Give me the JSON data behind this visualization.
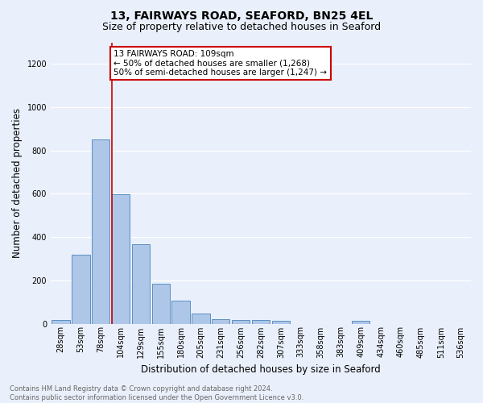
{
  "title1": "13, FAIRWAYS ROAD, SEAFORD, BN25 4EL",
  "title2": "Size of property relative to detached houses in Seaford",
  "xlabel": "Distribution of detached houses by size in Seaford",
  "ylabel": "Number of detached properties",
  "footnote": "Contains HM Land Registry data © Crown copyright and database right 2024.\nContains public sector information licensed under the Open Government Licence v3.0.",
  "bar_labels": [
    "28sqm",
    "53sqm",
    "78sqm",
    "104sqm",
    "129sqm",
    "155sqm",
    "180sqm",
    "205sqm",
    "231sqm",
    "256sqm",
    "282sqm",
    "307sqm",
    "333sqm",
    "358sqm",
    "383sqm",
    "409sqm",
    "434sqm",
    "460sqm",
    "485sqm",
    "511sqm",
    "536sqm"
  ],
  "bar_values": [
    15,
    318,
    853,
    597,
    368,
    183,
    105,
    48,
    22,
    18,
    18,
    12,
    0,
    0,
    0,
    12,
    0,
    0,
    0,
    0,
    0
  ],
  "bar_color": "#aec6e8",
  "bar_edge_color": "#5a8fc2",
  "background_color": "#eaf0fb",
  "grid_color": "#ffffff",
  "annotation_text": "13 FAIRWAYS ROAD: 109sqm\n← 50% of detached houses are smaller (1,268)\n50% of semi-detached houses are larger (1,247) →",
  "annotation_box_color": "#ffffff",
  "annotation_box_edge_color": "#cc0000",
  "red_line_bar_index": 3,
  "ylim": [
    0,
    1300
  ],
  "yticks": [
    0,
    200,
    400,
    600,
    800,
    1000,
    1200
  ],
  "title1_fontsize": 10,
  "title2_fontsize": 9,
  "ylabel_fontsize": 8.5,
  "xlabel_fontsize": 8.5,
  "tick_fontsize": 7,
  "annotation_fontsize": 7.5,
  "footnote_fontsize": 6,
  "footnote_color": "#666666"
}
